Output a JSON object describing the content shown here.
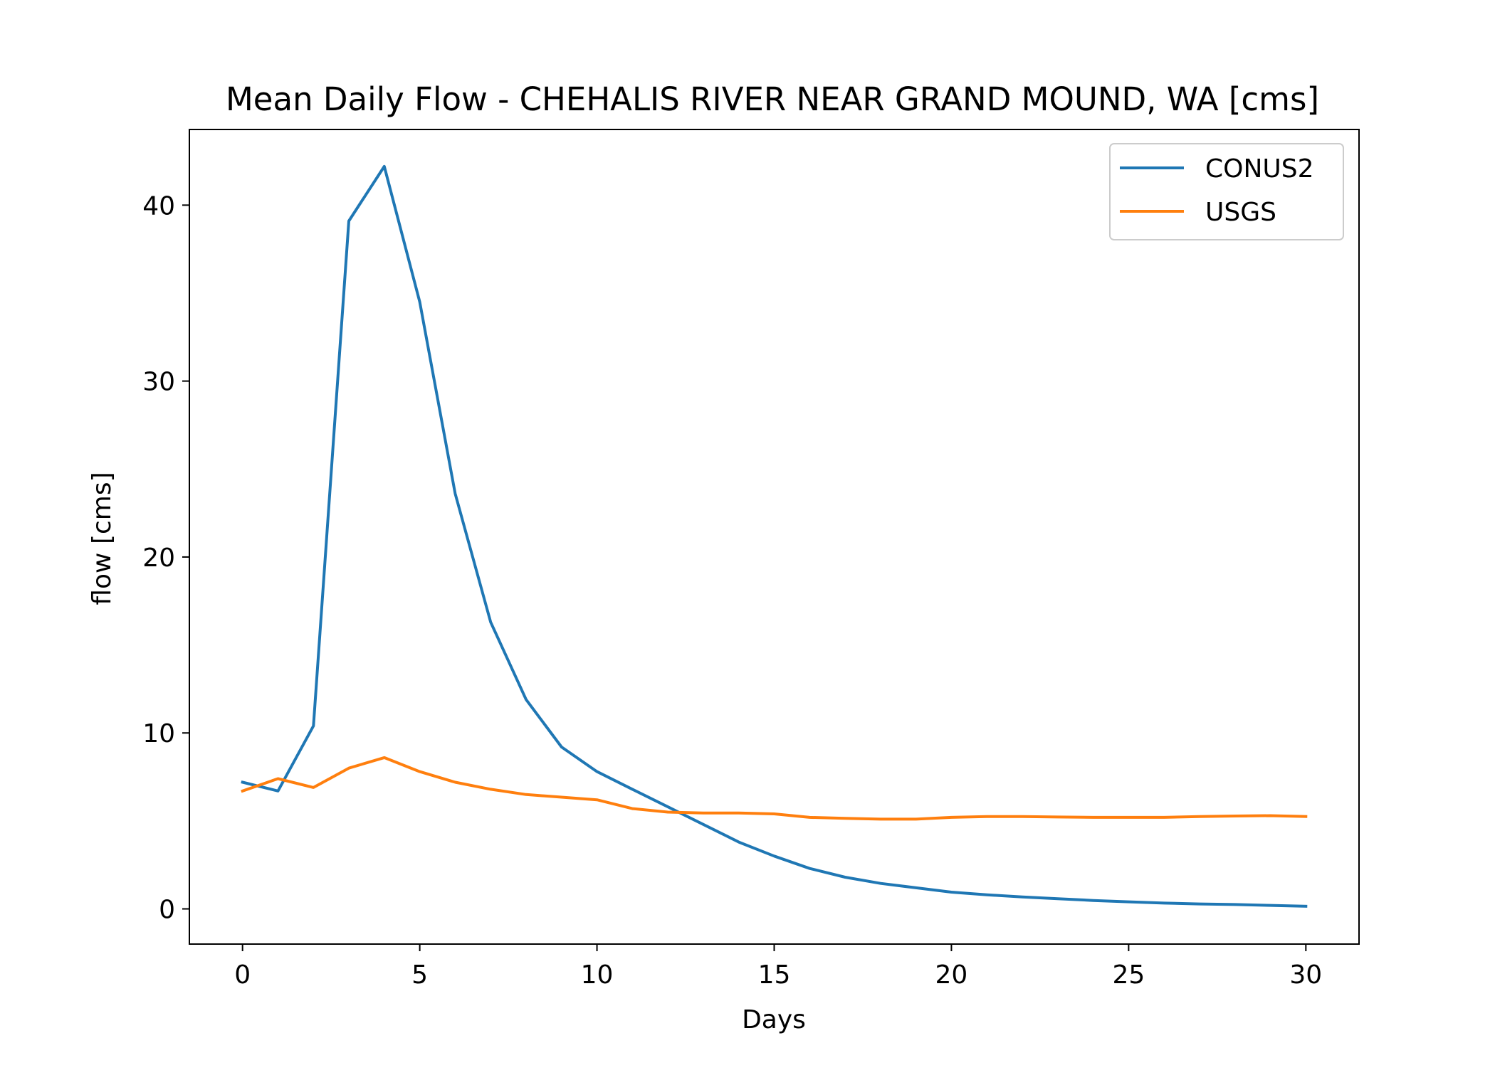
{
  "chart_data": {
    "type": "line",
    "title": "Mean Daily Flow - CHEHALIS RIVER NEAR GRAND MOUND, WA [cms]",
    "xlabel": "Days",
    "ylabel": "flow [cms]",
    "xlim": [
      -1.5,
      31.5
    ],
    "ylim": [
      -2,
      44.3
    ],
    "xticks": [
      0,
      5,
      10,
      15,
      20,
      25,
      30
    ],
    "yticks": [
      0,
      10,
      20,
      30,
      40
    ],
    "xtick_labels": [
      "0",
      "5",
      "10",
      "15",
      "20",
      "25",
      "30"
    ],
    "ytick_labels": [
      "0",
      "10",
      "20",
      "30",
      "40"
    ],
    "grid": false,
    "legend_position": "upper right",
    "x": [
      0,
      1,
      2,
      3,
      4,
      5,
      6,
      7,
      8,
      9,
      10,
      11,
      12,
      13,
      14,
      15,
      16,
      17,
      18,
      19,
      20,
      21,
      22,
      23,
      24,
      25,
      26,
      27,
      28,
      29,
      30
    ],
    "series": [
      {
        "name": "CONUS2",
        "color": "#1f77b4",
        "values": [
          7.2,
          6.7,
          10.4,
          39.1,
          42.2,
          34.5,
          23.6,
          16.3,
          11.9,
          9.2,
          7.8,
          6.8,
          5.8,
          4.8,
          3.8,
          3.0,
          2.3,
          1.8,
          1.45,
          1.2,
          0.95,
          0.8,
          0.68,
          0.58,
          0.48,
          0.4,
          0.33,
          0.28,
          0.25,
          0.2,
          0.15
        ]
      },
      {
        "name": "USGS",
        "color": "#ff7f0e",
        "values": [
          6.7,
          7.4,
          6.9,
          8.0,
          8.6,
          7.8,
          7.2,
          6.8,
          6.5,
          6.35,
          6.2,
          5.7,
          5.5,
          5.45,
          5.45,
          5.4,
          5.2,
          5.15,
          5.1,
          5.1,
          5.2,
          5.25,
          5.25,
          5.22,
          5.2,
          5.2,
          5.2,
          5.25,
          5.28,
          5.3,
          5.25
        ]
      }
    ]
  }
}
